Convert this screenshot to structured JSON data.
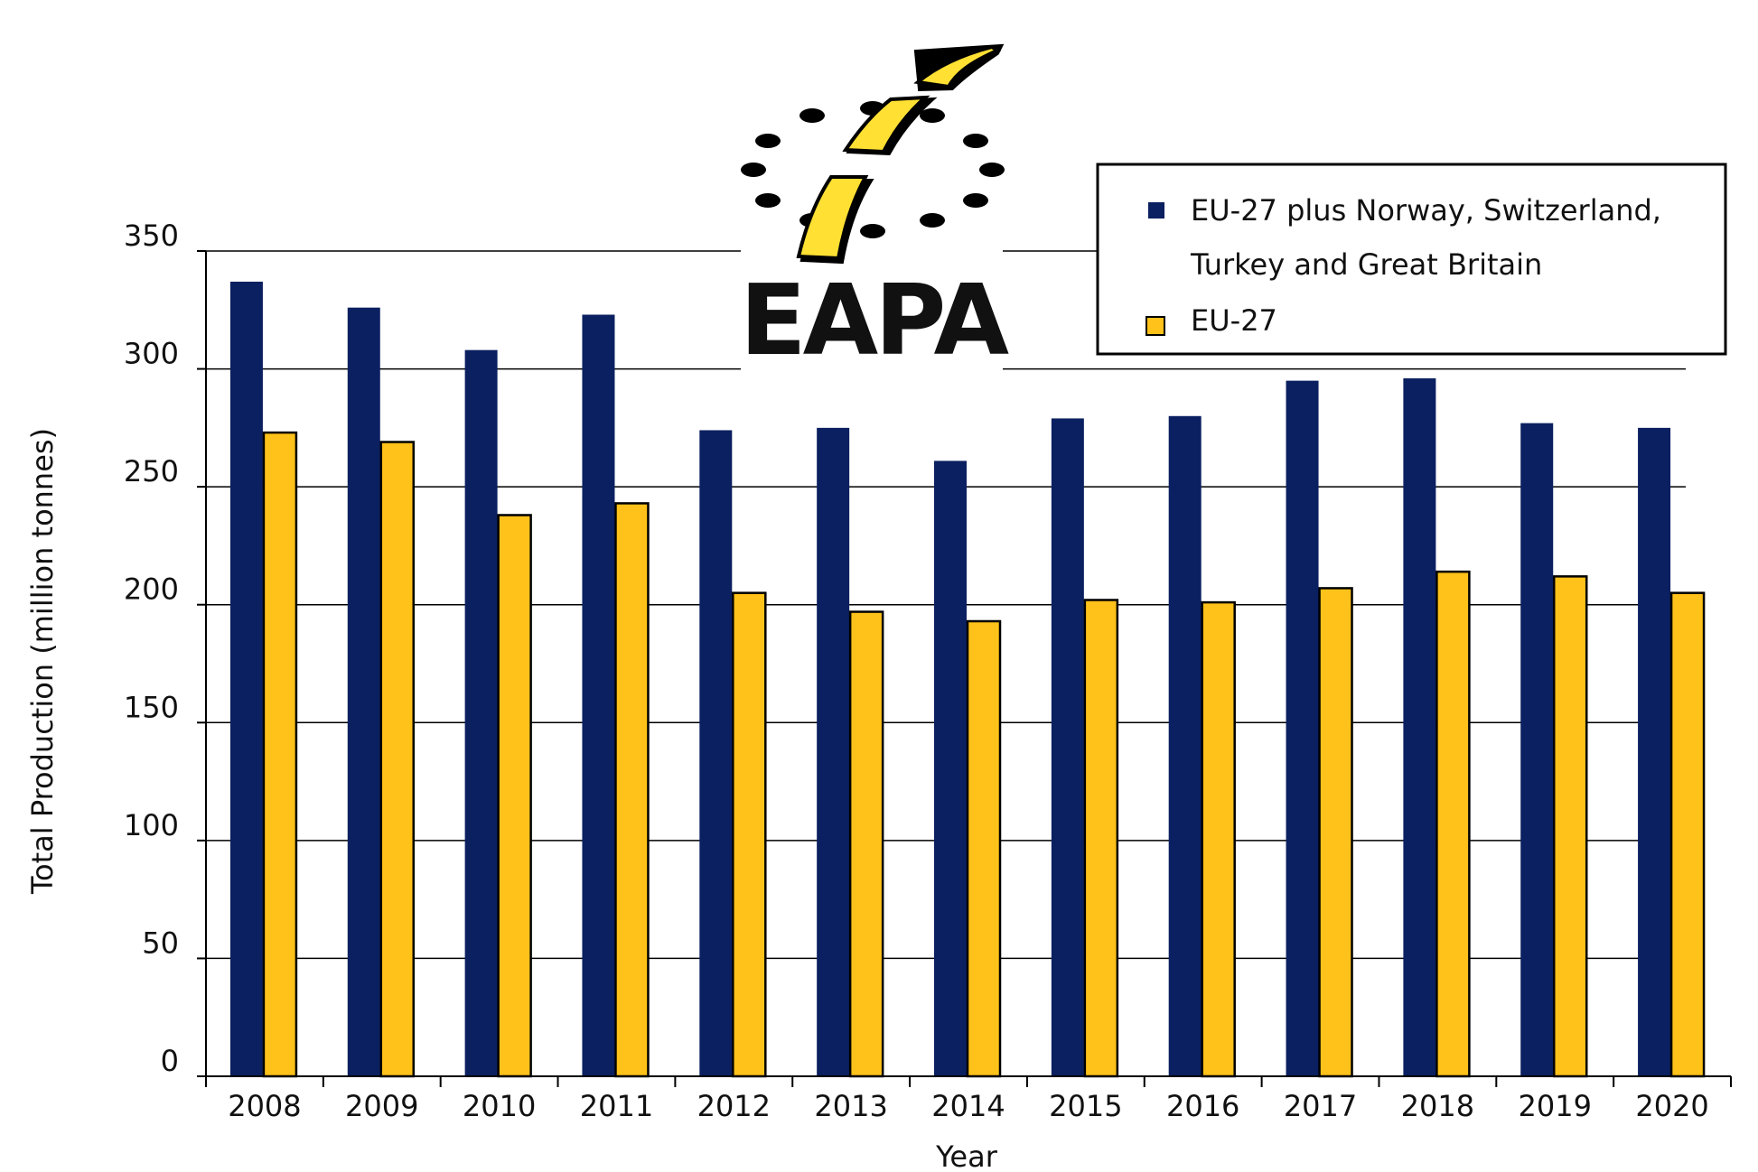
{
  "logo": {
    "text": "EAPA"
  },
  "colors": {
    "series_1": "#0a2060",
    "series_2": "#ffc21a",
    "logo_yellow": "#ffe033",
    "grid": "#000000"
  },
  "chart_data": {
    "type": "bar",
    "xlabel": "Year",
    "ylabel": "Total Production (million tonnes)",
    "ylim": [
      0,
      350
    ],
    "yticks": [
      0,
      50,
      100,
      150,
      200,
      250,
      300,
      350
    ],
    "grid": true,
    "legend": {
      "placement": "top-right",
      "entries": [
        {
          "line1": "EU-27 plus  Norway, Switzerland,",
          "line2": "Turkey and  Great  Britain"
        },
        {
          "line1": "EU-27",
          "line2": ""
        }
      ]
    },
    "categories": [
      "2008",
      "2009",
      "2010",
      "2011",
      "2012",
      "2013",
      "2014",
      "2015",
      "2016",
      "2017",
      "2018",
      "2019",
      "2020"
    ],
    "series": [
      {
        "name": "EU-27 plus  Norway, Switzerland, Turkey and  Great  Britain",
        "values": [
          337,
          326,
          308,
          323,
          274,
          275,
          261,
          279,
          280,
          295,
          296,
          277,
          275
        ]
      },
      {
        "name": "EU-27",
        "values": [
          273,
          269,
          238,
          243,
          205,
          197,
          193,
          202,
          201,
          207,
          214,
          212,
          205
        ]
      }
    ]
  }
}
